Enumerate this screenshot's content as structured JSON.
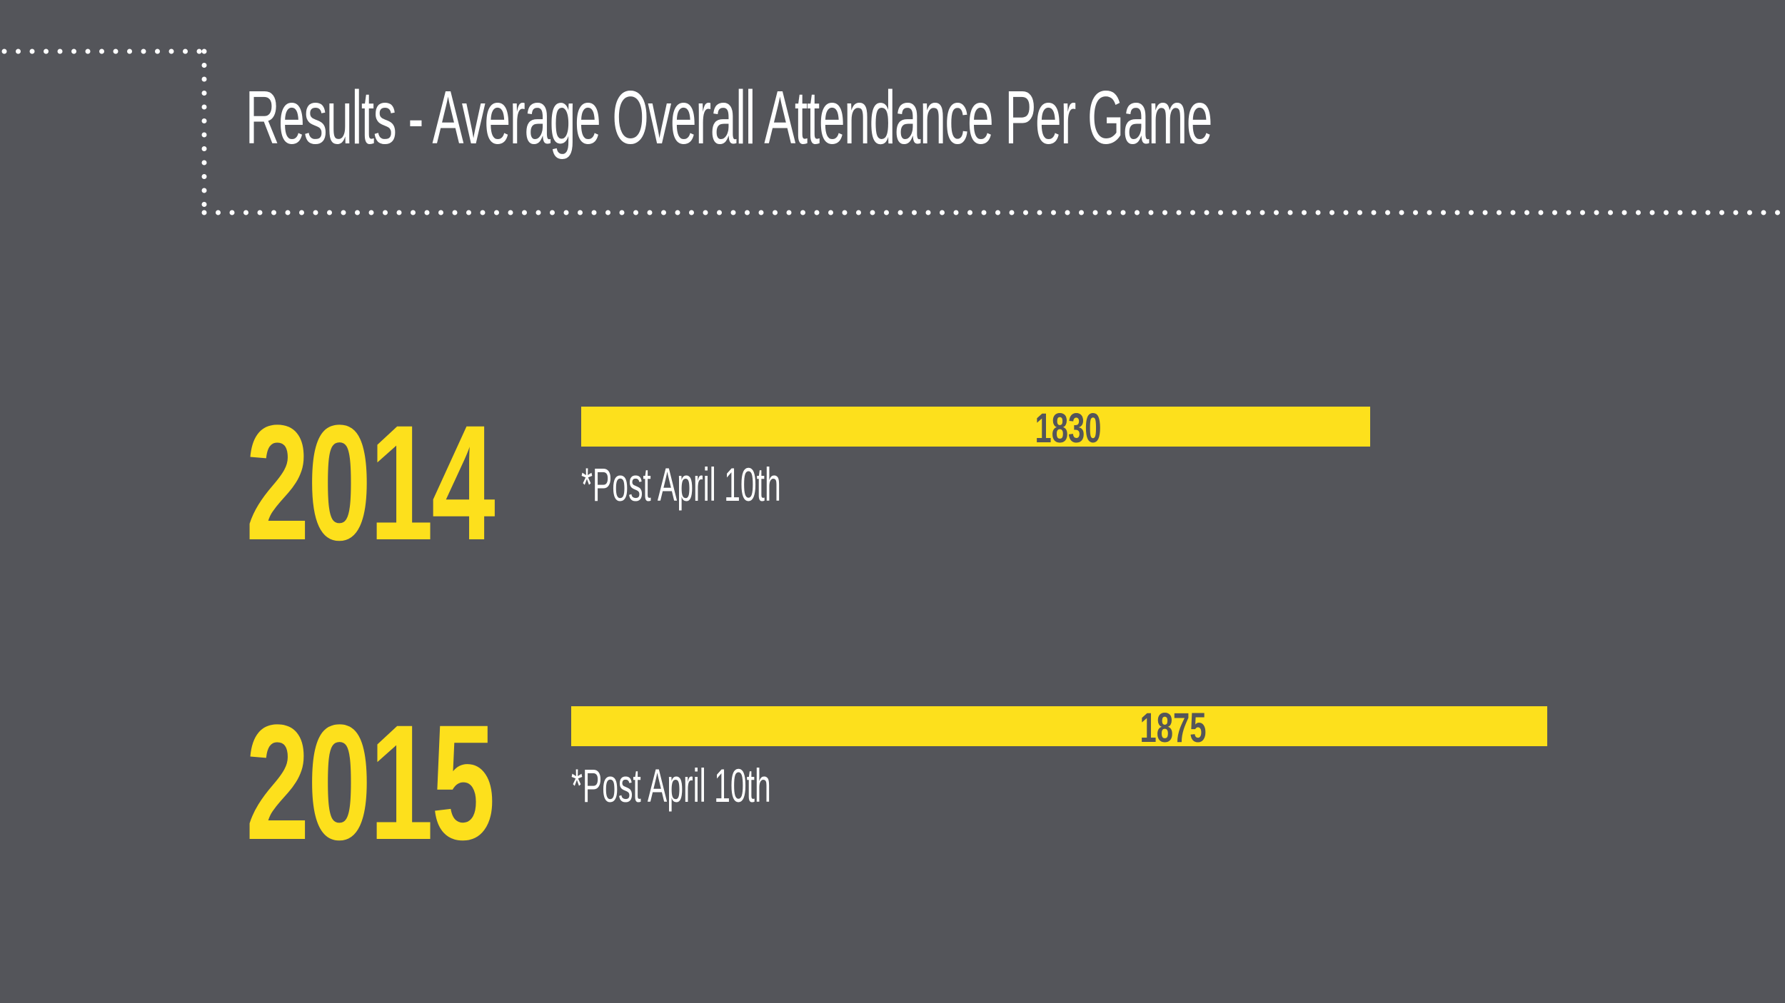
{
  "title": "Results - Average Overall Attendance Per Game",
  "colors": {
    "background": "#54555a",
    "accent": "#fde01c",
    "text": "#ffffff"
  },
  "chart_data": {
    "type": "bar",
    "orientation": "horizontal",
    "title": "Results - Average Overall Attendance Per Game",
    "categories": [
      "2014",
      "2015"
    ],
    "values": [
      1830,
      1875
    ],
    "value_labels": [
      "1830",
      "1875"
    ],
    "notes": [
      "*Post April 10th",
      "*Post April 10th"
    ],
    "xlabel": "",
    "ylabel": "",
    "grid": false,
    "legend": "none"
  }
}
